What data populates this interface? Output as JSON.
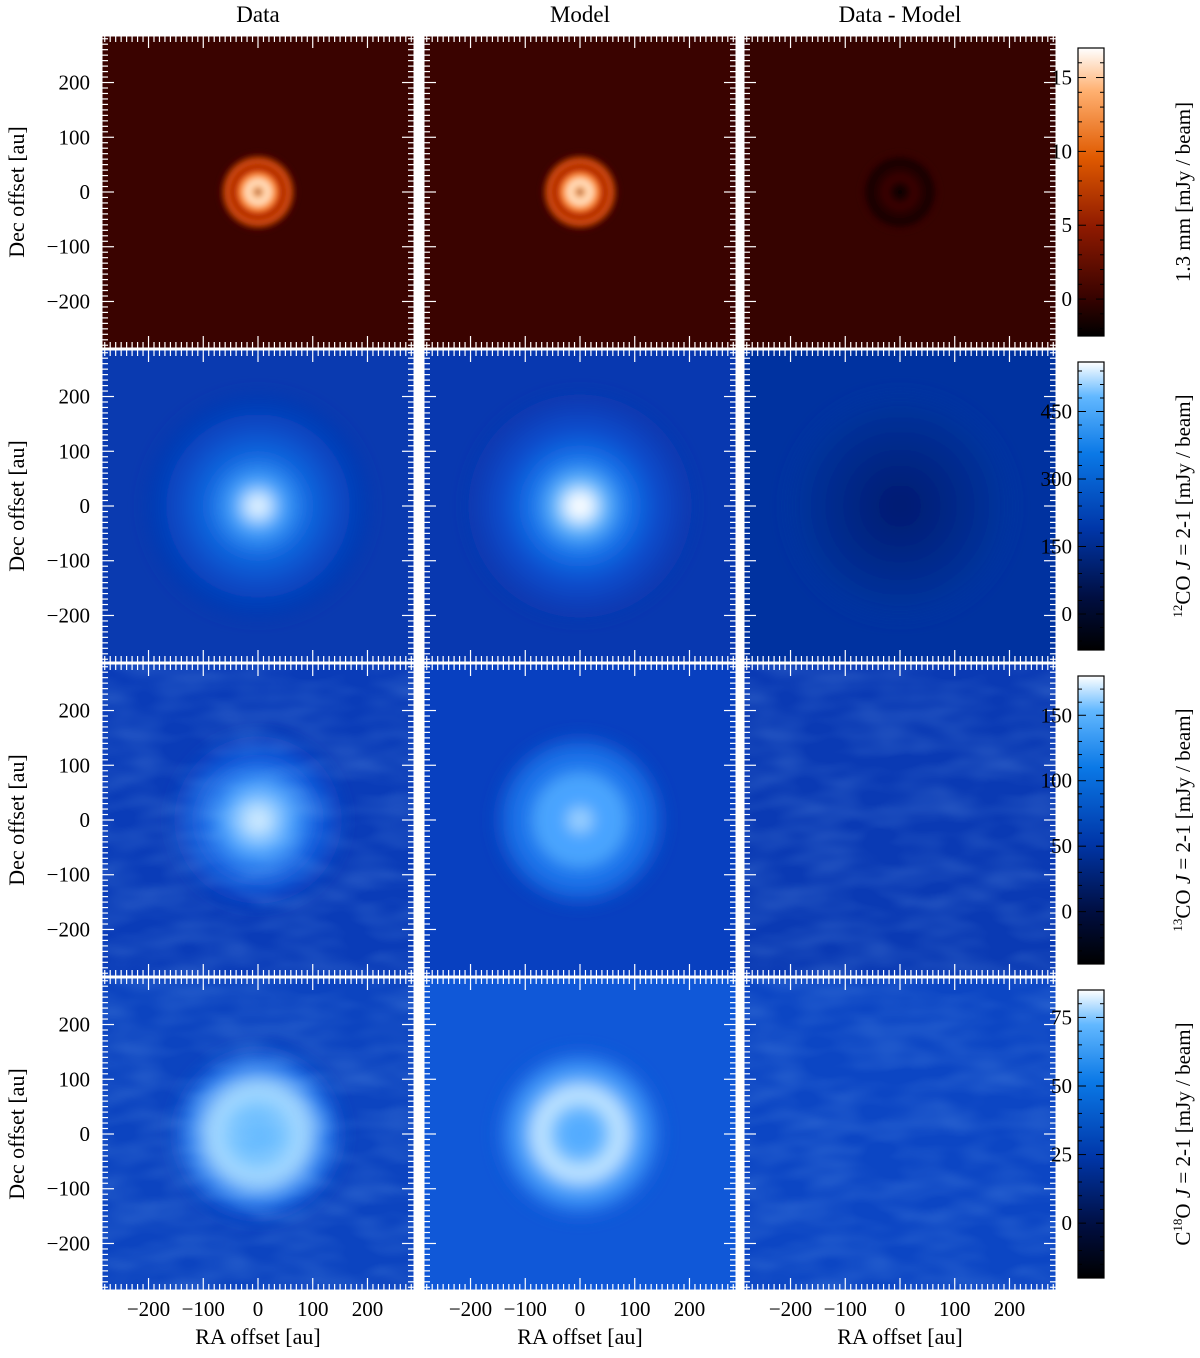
{
  "figure": {
    "column_titles": [
      "Data",
      "Model",
      "Data - Model"
    ],
    "xlabel": "RA offset [au]",
    "ylabel": "Dec offset [au]",
    "x_ticks": [
      -200,
      -100,
      0,
      100,
      200
    ],
    "y_ticks": [
      200,
      100,
      0,
      -100,
      -200
    ],
    "axis_range_au": [
      -285,
      285
    ],
    "rows": [
      {
        "colormap": "heat",
        "colorbar": {
          "ticks": [
            0,
            5,
            10,
            15
          ],
          "range": [
            -2.5,
            17
          ],
          "label": "1.3 mm [mJy / beam]"
        }
      },
      {
        "colormap": "blue",
        "colorbar": {
          "ticks": [
            0,
            150,
            300,
            450
          ],
          "range": [
            -80,
            560
          ],
          "label_parts": [
            "12",
            "CO ",
            "J",
            " = 2-1 [mJy / beam]"
          ]
        }
      },
      {
        "colormap": "blue",
        "colorbar": {
          "ticks": [
            0,
            50,
            100,
            150
          ],
          "range": [
            -40,
            180
          ],
          "label_parts": [
            "13",
            "CO ",
            "J",
            " = 2-1 [mJy / beam]"
          ]
        }
      },
      {
        "colormap": "blue",
        "colorbar": {
          "ticks": [
            0,
            25,
            50,
            75
          ],
          "range": [
            -20,
            85
          ],
          "label_parts": [
            "C",
            "18",
            "O ",
            "J",
            " = 2-1 [mJy / beam]"
          ]
        }
      }
    ],
    "colors": {
      "heat": [
        "#000000",
        "#3a0300",
        "#8f1a00",
        "#e05a00",
        "#ffb070",
        "#ffffff"
      ],
      "blue": [
        "#000000",
        "#000e40",
        "#0036a8",
        "#0a78e6",
        "#62b8ff",
        "#ffffff"
      ]
    }
  }
}
